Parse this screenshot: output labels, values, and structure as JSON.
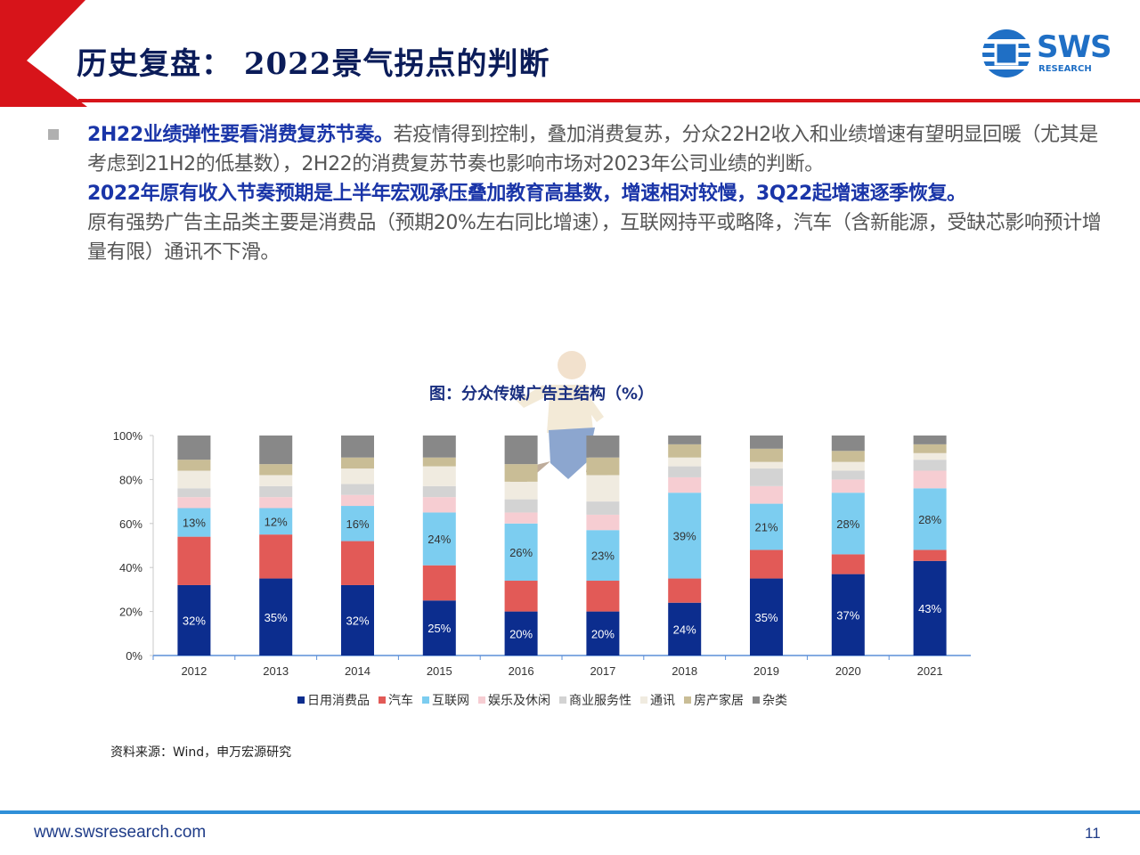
{
  "header": {
    "title": "历史复盘： 2022景气拐点的判断",
    "logo_text": "SWS",
    "logo_sub": "RESEARCH"
  },
  "body": {
    "part1_bold": "2H22业绩弹性要看消费复苏节奏。",
    "part1_text": "若疫情得到控制，叠加消费复苏，分众22H2收入和业绩增速有望明显回暖（尤其是考虑到21H2的低基数），2H22的消费复苏节奏也影响市场对2023年公司业绩的判断。",
    "part2_bold": "2022年原有收入节奏预期是上半年宏观承压叠加教育高基数，增速相对较慢，3Q22起增速逐季恢复。",
    "part2_text": "原有强势广告主品类主要是消费品（预期20%左右同比增速），互联网持平或略降，汽车（含新能源，受缺芯影响预计增量有限）通讯不下滑。"
  },
  "chart_data": {
    "type": "bar",
    "stacked": true,
    "title": "图：分众传媒广告主结构（%）",
    "categories": [
      "2012",
      "2013",
      "2014",
      "2015",
      "2016",
      "2017",
      "2018",
      "2019",
      "2020",
      "2021"
    ],
    "ylim": [
      0,
      100
    ],
    "yticks": [
      "0%",
      "20%",
      "40%",
      "60%",
      "80%",
      "100%"
    ],
    "series": [
      {
        "name": "日用消费品",
        "color": "#0c2d8e",
        "values": [
          32,
          35,
          32,
          25,
          20,
          20,
          24,
          35,
          37,
          43
        ]
      },
      {
        "name": "汽车",
        "color": "#e25a57",
        "values": [
          22,
          20,
          20,
          16,
          14,
          14,
          11,
          13,
          9,
          5
        ]
      },
      {
        "name": "互联网",
        "color": "#7ccdf0",
        "values": [
          13,
          12,
          16,
          24,
          26,
          23,
          39,
          21,
          28,
          28
        ]
      },
      {
        "name": "娱乐及休闲",
        "color": "#f6cdd2",
        "values": [
          5,
          5,
          5,
          7,
          5,
          7,
          7,
          8,
          6,
          8
        ]
      },
      {
        "name": "商业服务性",
        "color": "#d3d3d3",
        "values": [
          4,
          5,
          5,
          5,
          6,
          6,
          5,
          8,
          4,
          5
        ]
      },
      {
        "name": "通讯",
        "color": "#f0ebe0",
        "values": [
          8,
          5,
          7,
          9,
          8,
          12,
          4,
          3,
          4,
          3
        ]
      },
      {
        "name": "房产家居",
        "color": "#c9bd96",
        "values": [
          5,
          5,
          5,
          4,
          8,
          8,
          6,
          6,
          5,
          4
        ]
      },
      {
        "name": "杂类",
        "color": "#888888",
        "values": [
          11,
          13,
          10,
          10,
          13,
          10,
          4,
          6,
          7,
          4
        ]
      }
    ],
    "labeled_series": [
      0,
      2
    ],
    "label_suffix": "%"
  },
  "source": "资料来源：Wind，申万宏源研究",
  "footer": {
    "url": "www.swsresearch.com",
    "page": "11"
  }
}
